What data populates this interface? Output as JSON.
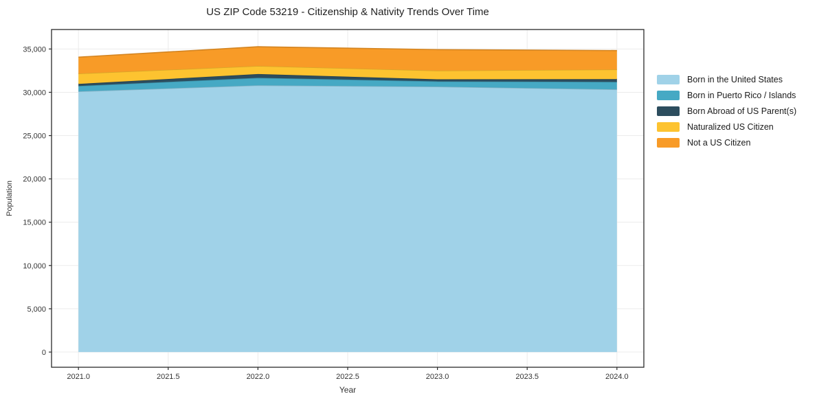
{
  "chart_data": {
    "type": "area",
    "stacked": true,
    "title": "US ZIP Code 53219 - Citizenship & Nativity Trends Over Time",
    "xlabel": "Year",
    "ylabel": "Population",
    "x": [
      2021,
      2022,
      2023,
      2024
    ],
    "series": [
      {
        "name": "Born in the United States",
        "color": "#a0d2e8",
        "values": [
          30100,
          30800,
          30650,
          30330
        ]
      },
      {
        "name": "Born in Puerto Rico / Islands",
        "color": "#46a9c4",
        "values": [
          630,
          870,
          610,
          870
        ]
      },
      {
        "name": "Born Abroad of US Parent(s)",
        "color": "#2c4d5e",
        "values": [
          240,
          440,
          240,
          320
        ]
      },
      {
        "name": "Naturalized US Citizen",
        "color": "#fdc330",
        "values": [
          1190,
          930,
          1000,
          1110
        ]
      },
      {
        "name": "Not a US Citizen",
        "color": "#f89b27",
        "values": [
          1900,
          2220,
          2430,
          2190
        ]
      }
    ],
    "xlim": [
      2020.85,
      2024.15
    ],
    "ylim": [
      -1750,
      37250
    ],
    "xticks": [
      2021.0,
      2021.5,
      2022.0,
      2022.5,
      2023.0,
      2023.5,
      2024.0
    ],
    "xtick_labels": [
      "2021.0",
      "2021.5",
      "2022.0",
      "2022.5",
      "2023.0",
      "2023.5",
      "2024.0"
    ],
    "yticks": [
      0,
      5000,
      10000,
      15000,
      20000,
      25000,
      30000,
      35000
    ],
    "ytick_labels": [
      "0",
      "5,000",
      "10,000",
      "15,000",
      "20,000",
      "25,000",
      "30,000",
      "35,000"
    ],
    "grid": true,
    "legend_position": "right",
    "colors": {
      "grid": "#ebebeb",
      "spine": "#2a2a2a",
      "tick_label": "#333333"
    }
  }
}
